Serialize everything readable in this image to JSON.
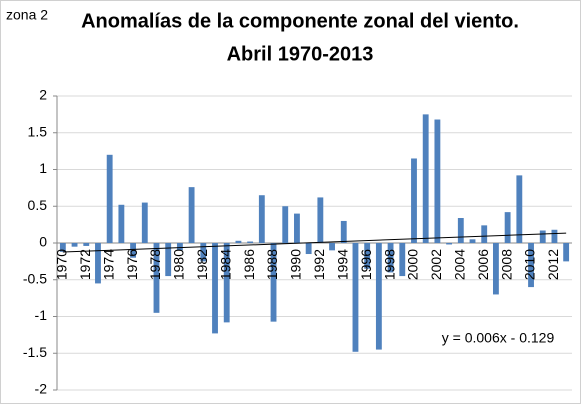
{
  "chart_data": {
    "type": "bar",
    "annotation": "zona 2",
    "title": "Anomalías de la componente zonal del viento.",
    "subtitle": "Abril 1970-2013",
    "categories": [
      "1970",
      null,
      "1972",
      null,
      "1974",
      null,
      "1976",
      null,
      "1978",
      null,
      "1980",
      null,
      "1982",
      null,
      "1984",
      null,
      "1986",
      null,
      "1988",
      null,
      "1990",
      null,
      "1992",
      null,
      "1994",
      null,
      "1996",
      null,
      "1998",
      null,
      "2000",
      null,
      "2002",
      null,
      "2004",
      null,
      "2006",
      null,
      "2008",
      null,
      "2010",
      null,
      "2012",
      null
    ],
    "values": [
      -0.12,
      -0.05,
      -0.04,
      -0.55,
      1.2,
      0.52,
      -0.2,
      0.55,
      -0.95,
      -0.45,
      -0.1,
      0.76,
      -0.25,
      -1.23,
      -1.08,
      0.03,
      0.02,
      0.65,
      -1.07,
      0.5,
      0.4,
      -0.15,
      0.62,
      -0.1,
      0.3,
      -1.48,
      -0.35,
      -1.45,
      -0.4,
      -0.45,
      1.15,
      1.75,
      1.68,
      -0.02,
      0.34,
      0.05,
      0.24,
      -0.7,
      0.42,
      0.92,
      -0.6,
      0.17,
      0.18,
      -0.25
    ],
    "color": "#4f81bd",
    "ylim": [
      -2,
      2
    ],
    "yticks": [
      -2,
      -1.5,
      -1,
      -0.5,
      0,
      0.5,
      1,
      1.5,
      2
    ],
    "grid": true,
    "trendline": {
      "slope": 0.006,
      "intercept": -0.129,
      "label": "y = 0.006x - 0.129"
    }
  }
}
